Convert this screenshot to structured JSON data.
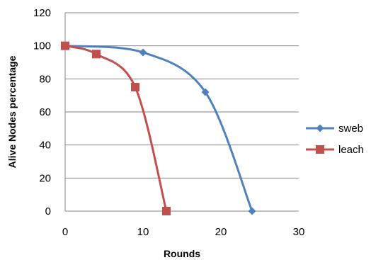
{
  "chart_data": {
    "type": "line",
    "xlabel": "Rounds",
    "ylabel": "Alive Nodes percentage",
    "xlim": [
      0,
      30
    ],
    "ylim": [
      0,
      120
    ],
    "xticks": [
      "0",
      "10",
      "20",
      "30"
    ],
    "yticks": [
      "0",
      "20",
      "40",
      "60",
      "80",
      "100",
      "120"
    ],
    "grid": "horizontal",
    "legend_position": "right",
    "series": [
      {
        "name": "sweb",
        "color": "#4F81BD",
        "marker": "diamond",
        "x": [
          0,
          10,
          18,
          24
        ],
        "y": [
          100,
          96,
          72,
          0
        ]
      },
      {
        "name": "leach",
        "color": "#C0504D",
        "marker": "square",
        "x": [
          0,
          4,
          9,
          13
        ],
        "y": [
          100,
          95,
          75,
          0
        ]
      }
    ]
  }
}
